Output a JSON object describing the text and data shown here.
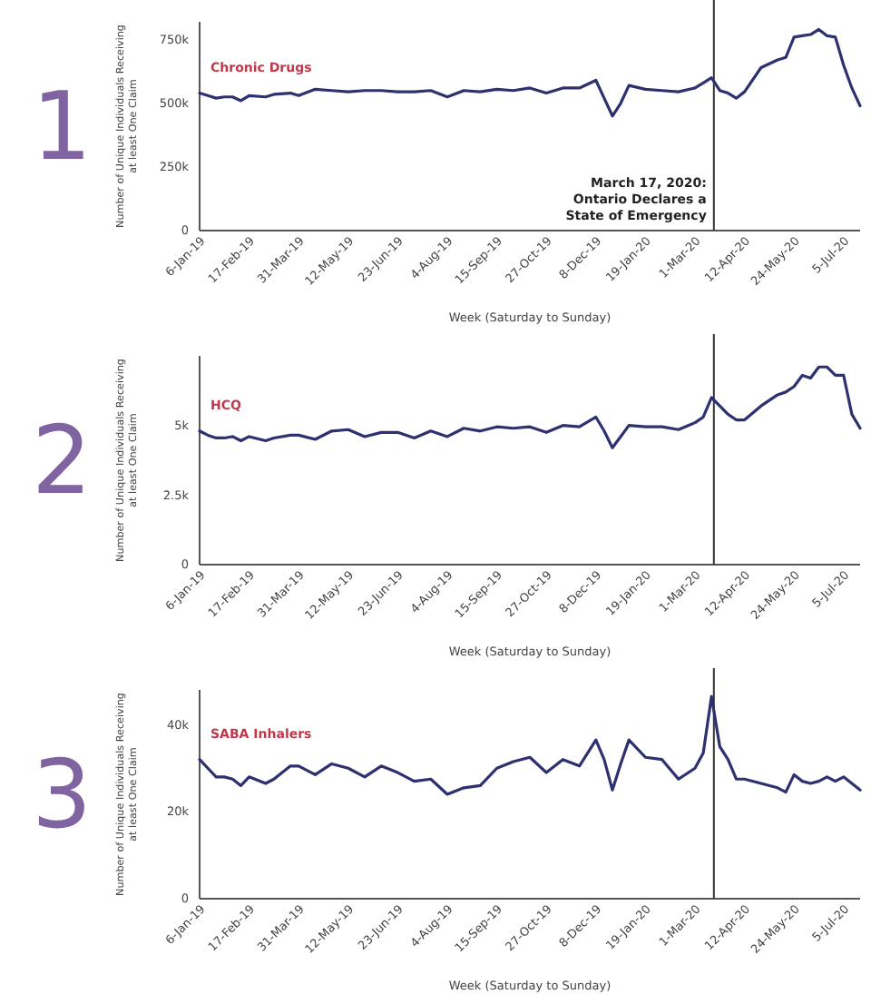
{
  "chart_data": [
    {
      "type": "line",
      "annotations": [
        "1"
      ],
      "xlabel": "Week (Saturday to Sunday)",
      "ylabel": "Number of Unique Individuals Receiving at least One Claim",
      "x": [
        "2019-01-06",
        "2019-01-13",
        "2019-01-20",
        "2019-01-27",
        "2019-02-03",
        "2019-02-10",
        "2019-02-17",
        "2019-03-03",
        "2019-03-10",
        "2019-03-24",
        "2019-03-31",
        "2019-04-14",
        "2019-04-28",
        "2019-05-12",
        "2019-05-26",
        "2019-06-09",
        "2019-06-23",
        "2019-07-07",
        "2019-07-21",
        "2019-08-04",
        "2019-08-18",
        "2019-09-01",
        "2019-09-15",
        "2019-09-29",
        "2019-10-13",
        "2019-10-27",
        "2019-11-10",
        "2019-11-24",
        "2019-12-08",
        "2019-12-15",
        "2019-12-22",
        "2019-12-29",
        "2020-01-05",
        "2020-01-19",
        "2020-02-02",
        "2020-02-16",
        "2020-03-01",
        "2020-03-08",
        "2020-03-15",
        "2020-03-22",
        "2020-03-29",
        "2020-04-05",
        "2020-04-12",
        "2020-04-26",
        "2020-05-10",
        "2020-05-17",
        "2020-05-24",
        "2020-05-31",
        "2020-06-07",
        "2020-06-14",
        "2020-06-21",
        "2020-06-28",
        "2020-07-05",
        "2020-07-12",
        "2020-07-19"
      ],
      "series": [
        {
          "name": "Chronic Drugs",
          "color": "#2e3170",
          "values": [
            540000,
            530000,
            520000,
            525000,
            525000,
            510000,
            530000,
            525000,
            535000,
            540000,
            530000,
            555000,
            550000,
            545000,
            550000,
            550000,
            545000,
            545000,
            550000,
            525000,
            550000,
            545000,
            555000,
            550000,
            560000,
            540000,
            560000,
            560000,
            590000,
            520000,
            450000,
            500000,
            570000,
            555000,
            550000,
            545000,
            560000,
            580000,
            600000,
            550000,
            540000,
            520000,
            545000,
            640000,
            670000,
            680000,
            760000,
            765000,
            770000,
            790000,
            765000,
            760000,
            650000,
            560000,
            490000
          ]
        }
      ],
      "xlim": [
        "2019-01-06",
        "2020-07-19"
      ],
      "xticks": [
        {
          "value": "2019-01-06",
          "label": "6-Jan-19"
        },
        {
          "value": "2019-02-17",
          "label": "17-Feb-19"
        },
        {
          "value": "2019-03-31",
          "label": "31-Mar-19"
        },
        {
          "value": "2019-05-12",
          "label": "12-May-19"
        },
        {
          "value": "2019-06-23",
          "label": "23-Jun-19"
        },
        {
          "value": "2019-08-04",
          "label": "4-Aug-19"
        },
        {
          "value": "2019-09-15",
          "label": "15-Sep-19"
        },
        {
          "value": "2019-10-27",
          "label": "27-Oct-19"
        },
        {
          "value": "2019-12-08",
          "label": "8-Dec-19"
        },
        {
          "value": "2020-01-19",
          "label": "19-Jan-20"
        },
        {
          "value": "2020-03-01",
          "label": "1-Mar-20"
        },
        {
          "value": "2020-04-12",
          "label": "12-Apr-20"
        },
        {
          "value": "2020-05-24",
          "label": "24-May-20"
        },
        {
          "value": "2020-07-05",
          "label": "5-Jul-20"
        }
      ],
      "ylim": [
        0,
        820000
      ],
      "yticks": [
        {
          "value": 0,
          "label": "0"
        },
        {
          "value": 250000,
          "label": "250k"
        },
        {
          "value": 500000,
          "label": "500k"
        },
        {
          "value": 750000,
          "label": "750k"
        }
      ],
      "ref_lines": [
        {
          "axis": "x",
          "value": "2020-03-17",
          "label": "March 17, 2020:\nOntario Declares a\nState of Emergency",
          "color": "#333333"
        }
      ]
    },
    {
      "type": "line",
      "annotations": [
        "2"
      ],
      "xlabel": "Week (Saturday to Sunday)",
      "ylabel": "Number of Unique Individuals Receiving at least One Claim",
      "x": [
        "2019-01-06",
        "2019-01-13",
        "2019-01-20",
        "2019-01-27",
        "2019-02-03",
        "2019-02-10",
        "2019-02-17",
        "2019-03-03",
        "2019-03-10",
        "2019-03-24",
        "2019-03-31",
        "2019-04-14",
        "2019-04-28",
        "2019-05-12",
        "2019-05-26",
        "2019-06-09",
        "2019-06-23",
        "2019-07-07",
        "2019-07-21",
        "2019-08-04",
        "2019-08-18",
        "2019-09-01",
        "2019-09-15",
        "2019-09-29",
        "2019-10-13",
        "2019-10-27",
        "2019-11-10",
        "2019-11-24",
        "2019-12-08",
        "2019-12-15",
        "2019-12-22",
        "2019-12-29",
        "2020-01-05",
        "2020-01-19",
        "2020-02-02",
        "2020-02-16",
        "2020-03-01",
        "2020-03-08",
        "2020-03-15",
        "2020-03-22",
        "2020-03-29",
        "2020-04-05",
        "2020-04-12",
        "2020-04-26",
        "2020-05-10",
        "2020-05-17",
        "2020-05-24",
        "2020-05-31",
        "2020-06-07",
        "2020-06-14",
        "2020-06-21",
        "2020-06-28",
        "2020-07-05",
        "2020-07-12",
        "2020-07-19"
      ],
      "series": [
        {
          "name": "HCQ",
          "color": "#2e3170",
          "values": [
            4800,
            4650,
            4550,
            4550,
            4600,
            4450,
            4600,
            4450,
            4550,
            4650,
            4650,
            4500,
            4800,
            4850,
            4600,
            4750,
            4750,
            4550,
            4800,
            4600,
            4900,
            4800,
            4950,
            4900,
            4950,
            4750,
            5000,
            4950,
            5300,
            4800,
            4200,
            4600,
            5000,
            4950,
            4950,
            4850,
            5100,
            5300,
            6000,
            5700,
            5400,
            5200,
            5200,
            5700,
            6100,
            6200,
            6400,
            6800,
            6700,
            7100,
            7100,
            6800,
            6800,
            5400,
            4900
          ]
        }
      ],
      "xlim": [
        "2019-01-06",
        "2020-07-19"
      ],
      "xticks": [
        {
          "value": "2019-01-06",
          "label": "6-Jan-19"
        },
        {
          "value": "2019-02-17",
          "label": "17-Feb-19"
        },
        {
          "value": "2019-03-31",
          "label": "31-Mar-19"
        },
        {
          "value": "2019-05-12",
          "label": "12-May-19"
        },
        {
          "value": "2019-06-23",
          "label": "23-Jun-19"
        },
        {
          "value": "2019-08-04",
          "label": "4-Aug-19"
        },
        {
          "value": "2019-09-15",
          "label": "15-Sep-19"
        },
        {
          "value": "2019-10-27",
          "label": "27-Oct-19"
        },
        {
          "value": "2019-12-08",
          "label": "8-Dec-19"
        },
        {
          "value": "2020-01-19",
          "label": "19-Jan-20"
        },
        {
          "value": "2020-03-01",
          "label": "1-Mar-20"
        },
        {
          "value": "2020-04-12",
          "label": "12-Apr-20"
        },
        {
          "value": "2020-05-24",
          "label": "24-May-20"
        },
        {
          "value": "2020-07-05",
          "label": "5-Jul-20"
        }
      ],
      "ylim": [
        0,
        7500
      ],
      "yticks": [
        {
          "value": 0,
          "label": "0"
        },
        {
          "value": 2500,
          "label": "2.5k"
        },
        {
          "value": 5000,
          "label": "5k"
        }
      ],
      "ref_lines": [
        {
          "axis": "x",
          "value": "2020-03-17",
          "color": "#333333"
        }
      ]
    },
    {
      "type": "line",
      "annotations": [
        "3"
      ],
      "xlabel": "Week (Saturday to Sunday)",
      "ylabel": "Number of Unique Individuals Receiving at least One Claim",
      "x": [
        "2019-01-06",
        "2019-01-13",
        "2019-01-20",
        "2019-01-27",
        "2019-02-03",
        "2019-02-10",
        "2019-02-17",
        "2019-03-03",
        "2019-03-10",
        "2019-03-24",
        "2019-03-31",
        "2019-04-14",
        "2019-04-28",
        "2019-05-12",
        "2019-05-26",
        "2019-06-09",
        "2019-06-23",
        "2019-07-07",
        "2019-07-21",
        "2019-08-04",
        "2019-08-18",
        "2019-09-01",
        "2019-09-15",
        "2019-09-29",
        "2019-10-13",
        "2019-10-27",
        "2019-11-10",
        "2019-11-24",
        "2019-12-08",
        "2019-12-15",
        "2019-12-22",
        "2019-12-29",
        "2020-01-05",
        "2020-01-19",
        "2020-02-02",
        "2020-02-16",
        "2020-03-01",
        "2020-03-08",
        "2020-03-15",
        "2020-03-22",
        "2020-03-29",
        "2020-04-05",
        "2020-04-12",
        "2020-04-26",
        "2020-05-10",
        "2020-05-17",
        "2020-05-24",
        "2020-05-31",
        "2020-06-07",
        "2020-06-14",
        "2020-06-21",
        "2020-06-28",
        "2020-07-05",
        "2020-07-12",
        "2020-07-19"
      ],
      "series": [
        {
          "name": "SABA Inhalers",
          "color": "#2e3170",
          "values": [
            32000,
            30000,
            28000,
            28000,
            27500,
            26000,
            28000,
            26500,
            27500,
            30500,
            30500,
            28500,
            31000,
            30000,
            28000,
            30500,
            29000,
            27000,
            27500,
            24000,
            25500,
            26000,
            30000,
            31500,
            32500,
            29000,
            32000,
            30500,
            36500,
            32000,
            25000,
            31000,
            36500,
            32500,
            32000,
            27500,
            30000,
            33500,
            46500,
            35000,
            32000,
            27500,
            27500,
            26500,
            25500,
            24500,
            28500,
            27000,
            26500,
            27000,
            28000,
            27000,
            28000,
            26500,
            25000
          ]
        }
      ],
      "xlim": [
        "2019-01-06",
        "2020-07-19"
      ],
      "xticks": [
        {
          "value": "2019-01-06",
          "label": "6-Jan-19"
        },
        {
          "value": "2019-02-17",
          "label": "17-Feb-19"
        },
        {
          "value": "2019-03-31",
          "label": "31-Mar-19"
        },
        {
          "value": "2019-05-12",
          "label": "12-May-19"
        },
        {
          "value": "2019-06-23",
          "label": "23-Jun-19"
        },
        {
          "value": "2019-08-04",
          "label": "4-Aug-19"
        },
        {
          "value": "2019-09-15",
          "label": "15-Sep-19"
        },
        {
          "value": "2019-10-27",
          "label": "27-Oct-19"
        },
        {
          "value": "2019-12-08",
          "label": "8-Dec-19"
        },
        {
          "value": "2020-01-19",
          "label": "19-Jan-20"
        },
        {
          "value": "2020-03-01",
          "label": "1-Mar-20"
        },
        {
          "value": "2020-04-12",
          "label": "12-Apr-20"
        },
        {
          "value": "2020-05-24",
          "label": "24-May-20"
        },
        {
          "value": "2020-07-05",
          "label": "5-Jul-20"
        }
      ],
      "ylim": [
        0,
        48000
      ],
      "yticks": [
        {
          "value": 0,
          "label": "0"
        },
        {
          "value": 20000,
          "label": "20k"
        },
        {
          "value": 40000,
          "label": "40k"
        }
      ],
      "ref_lines": [
        {
          "axis": "x",
          "value": "2020-03-17",
          "color": "#333333"
        }
      ]
    }
  ]
}
